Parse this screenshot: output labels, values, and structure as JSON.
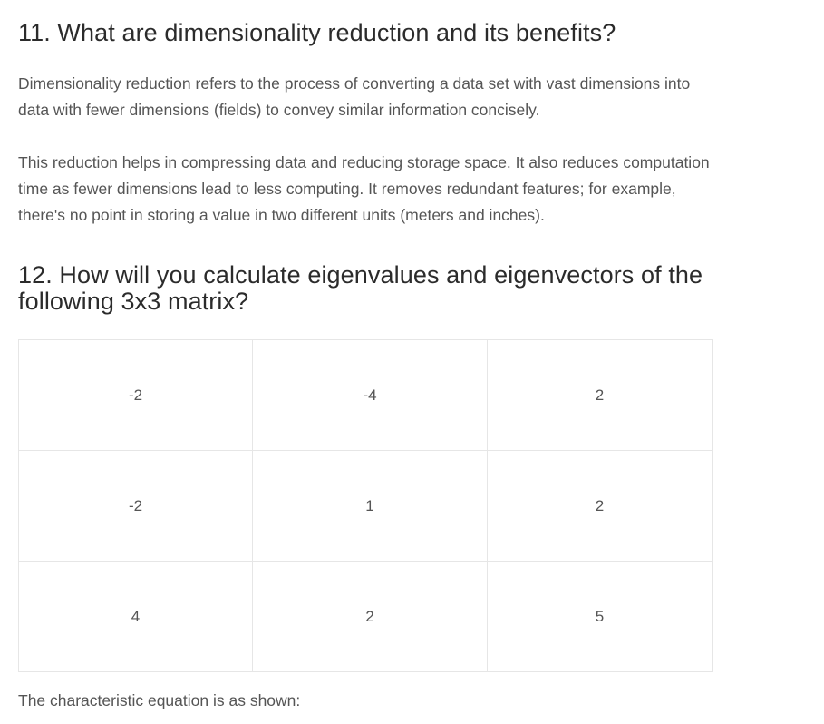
{
  "sections": [
    {
      "heading": "11. What are dimensionality reduction and its benefits?",
      "paragraphs": [
        "Dimensionality reduction refers to the process of converting a data set with vast dimensions into data with fewer dimensions (fields) to convey similar information concisely.",
        "This reduction helps in compressing data and reducing storage space. It also reduces computation time as fewer dimensions lead to less computing. It removes redundant features; for example, there's no point in storing a value in two different units (meters and inches)."
      ]
    },
    {
      "heading": "12. How will you calculate eigenvalues and eigenvectors of the following 3x3 matrix?",
      "matrix": [
        [
          "-2",
          "-4",
          "2"
        ],
        [
          "-2",
          "1",
          "2"
        ],
        [
          "4",
          "2",
          "5"
        ]
      ],
      "after_text": "The characteristic equation is as shown:"
    }
  ]
}
